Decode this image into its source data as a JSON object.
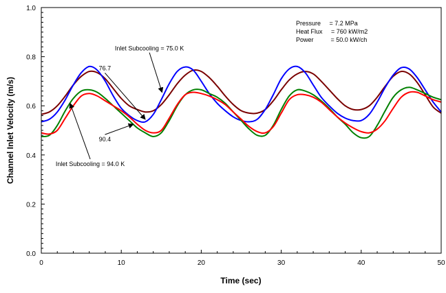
{
  "chart_data": {
    "type": "line",
    "title": "",
    "xlabel": "Time (sec)",
    "ylabel": "Channel Inlet Velocity (m/s)",
    "xlim": [
      0,
      50
    ],
    "ylim": [
      0.0,
      1.0
    ],
    "x_ticks": [
      0,
      10,
      20,
      30,
      40,
      50
    ],
    "x_tick_labels": [
      "0",
      "10",
      "20",
      "30",
      "40",
      "50"
    ],
    "y_ticks": [
      0.0,
      0.2,
      0.4,
      0.6,
      0.8,
      1.0
    ],
    "y_tick_labels": [
      "0.0",
      "0.2",
      "0.4",
      "0.6",
      "0.8",
      "1.0"
    ],
    "grid": false,
    "legend": "none",
    "info_lines": [
      "Pressure     = 7.2 MPa",
      "Heat Flux     = 760 kW/m2",
      "Power          = 50.0 kW/ch"
    ],
    "annotations": [
      {
        "text": "Inlet Subcooling = 75.0 K",
        "x": 9.2,
        "y": 0.825,
        "arrow_to": [
          15.1,
          0.655
        ]
      },
      {
        "text": "76.7",
        "x": 7.2,
        "y": 0.745,
        "arrow_to": [
          13.0,
          0.545
        ]
      },
      {
        "text": "90.4",
        "x": 7.2,
        "y": 0.455,
        "arrow_to": [
          11.5,
          0.525
        ]
      },
      {
        "text": "Inlet Subcooling = 94.0 K",
        "x": 1.8,
        "y": 0.355,
        "arrow_to": [
          3.6,
          0.61
        ]
      }
    ],
    "series": [
      {
        "label": "75.0",
        "color": "#7a0000",
        "x": [
          0,
          1,
          2,
          3,
          4,
          5,
          6,
          7,
          8,
          9,
          10,
          11,
          12,
          13,
          14,
          15,
          16,
          17,
          18,
          19,
          20,
          21,
          22,
          23,
          24,
          25,
          26,
          27,
          28,
          29,
          30,
          31,
          32,
          33,
          34,
          35,
          36,
          37,
          38,
          39,
          40,
          41,
          42,
          43,
          44,
          45,
          46,
          47,
          48,
          49,
          50
        ],
        "y": [
          0.565,
          0.575,
          0.6,
          0.64,
          0.685,
          0.72,
          0.74,
          0.735,
          0.71,
          0.67,
          0.63,
          0.6,
          0.585,
          0.575,
          0.58,
          0.605,
          0.645,
          0.69,
          0.725,
          0.745,
          0.74,
          0.715,
          0.68,
          0.64,
          0.605,
          0.58,
          0.57,
          0.57,
          0.585,
          0.62,
          0.665,
          0.705,
          0.73,
          0.74,
          0.73,
          0.7,
          0.665,
          0.63,
          0.6,
          0.585,
          0.585,
          0.6,
          0.635,
          0.68,
          0.72,
          0.74,
          0.73,
          0.695,
          0.645,
          0.595,
          0.57
        ]
      },
      {
        "label": "76.7",
        "color": "#0000ff",
        "x": [
          0,
          1,
          2,
          3,
          4,
          5,
          6,
          7,
          8,
          9,
          10,
          11,
          12,
          13,
          14,
          15,
          16,
          17,
          18,
          19,
          20,
          21,
          22,
          23,
          24,
          25,
          26,
          27,
          28,
          29,
          30,
          31,
          32,
          33,
          34,
          35,
          36,
          37,
          38,
          39,
          40,
          41,
          42,
          43,
          44,
          45,
          46,
          47,
          48,
          49,
          50
        ],
        "y": [
          0.535,
          0.545,
          0.575,
          0.625,
          0.685,
          0.735,
          0.76,
          0.745,
          0.7,
          0.64,
          0.59,
          0.56,
          0.54,
          0.535,
          0.565,
          0.625,
          0.69,
          0.74,
          0.758,
          0.745,
          0.7,
          0.65,
          0.61,
          0.58,
          0.555,
          0.54,
          0.535,
          0.545,
          0.585,
          0.645,
          0.71,
          0.75,
          0.76,
          0.735,
          0.685,
          0.635,
          0.6,
          0.57,
          0.55,
          0.54,
          0.54,
          0.565,
          0.615,
          0.675,
          0.725,
          0.755,
          0.75,
          0.715,
          0.665,
          0.615,
          0.575
        ]
      },
      {
        "label": "90.4",
        "color": "#008000",
        "x": [
          0,
          1,
          2,
          3,
          4,
          5,
          6,
          7,
          8,
          9,
          10,
          11,
          12,
          13,
          14,
          15,
          16,
          17,
          18,
          19,
          20,
          21,
          22,
          23,
          24,
          25,
          26,
          27,
          28,
          29,
          30,
          31,
          32,
          33,
          34,
          35,
          36,
          37,
          38,
          39,
          40,
          41,
          42,
          43,
          44,
          45,
          46,
          47,
          48,
          49,
          50
        ],
        "y": [
          0.475,
          0.48,
          0.52,
          0.58,
          0.63,
          0.66,
          0.665,
          0.655,
          0.63,
          0.6,
          0.57,
          0.54,
          0.51,
          0.49,
          0.475,
          0.49,
          0.54,
          0.6,
          0.645,
          0.665,
          0.665,
          0.65,
          0.635,
          0.61,
          0.575,
          0.54,
          0.505,
          0.48,
          0.48,
          0.52,
          0.585,
          0.64,
          0.665,
          0.66,
          0.645,
          0.62,
          0.59,
          0.555,
          0.525,
          0.49,
          0.47,
          0.475,
          0.52,
          0.58,
          0.635,
          0.665,
          0.675,
          0.665,
          0.65,
          0.635,
          0.625
        ]
      },
      {
        "label": "94.0",
        "color": "#ff0000",
        "x": [
          0,
          1,
          2,
          3,
          4,
          5,
          6,
          7,
          8,
          9,
          10,
          11,
          12,
          13,
          14,
          15,
          16,
          17,
          18,
          19,
          20,
          21,
          22,
          23,
          24,
          25,
          26,
          27,
          28,
          29,
          30,
          31,
          32,
          33,
          34,
          35,
          36,
          37,
          38,
          39,
          40,
          41,
          42,
          43,
          44,
          45,
          46,
          47,
          48,
          49,
          50
        ],
        "y": [
          0.49,
          0.485,
          0.5,
          0.55,
          0.6,
          0.64,
          0.65,
          0.64,
          0.62,
          0.6,
          0.58,
          0.555,
          0.525,
          0.5,
          0.49,
          0.5,
          0.55,
          0.605,
          0.645,
          0.655,
          0.65,
          0.64,
          0.625,
          0.605,
          0.575,
          0.545,
          0.515,
          0.495,
          0.49,
          0.515,
          0.57,
          0.625,
          0.645,
          0.645,
          0.635,
          0.615,
          0.585,
          0.555,
          0.53,
          0.51,
          0.495,
          0.49,
          0.505,
          0.54,
          0.59,
          0.635,
          0.655,
          0.655,
          0.64,
          0.625,
          0.615
        ]
      }
    ]
  }
}
